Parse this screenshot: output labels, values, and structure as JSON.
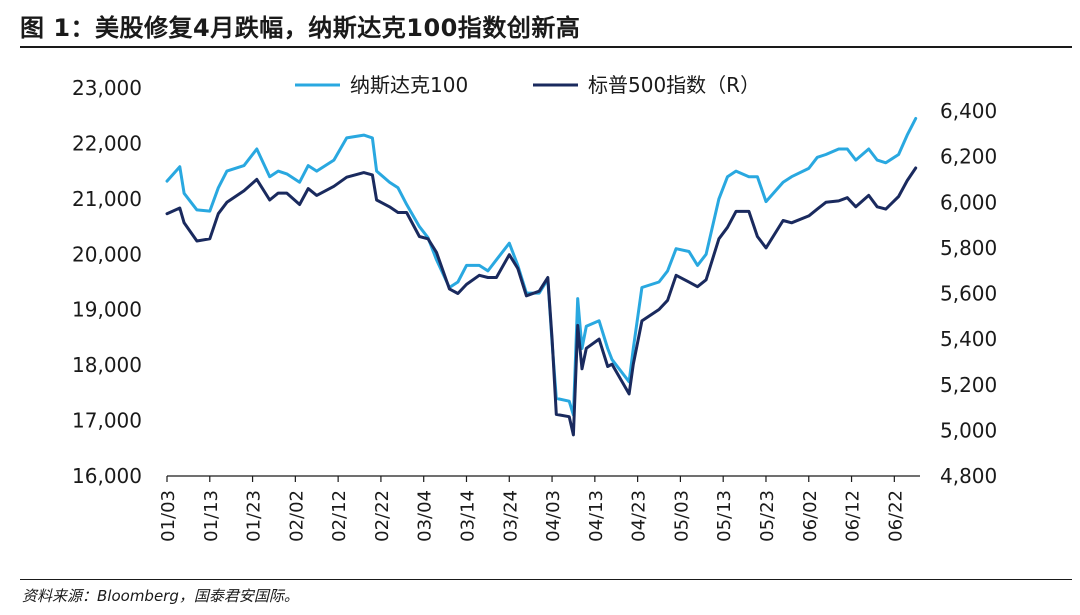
{
  "figure": {
    "title": "图 1：美股修复4月跌幅，纳斯达克100指数创新高",
    "source": "资料来源：Bloomberg，国泰君安国际。"
  },
  "chart_data": {
    "type": "line",
    "x_tick_labels": [
      "01/03",
      "01/13",
      "01/23",
      "02/02",
      "02/12",
      "02/22",
      "03/04",
      "03/14",
      "03/24",
      "04/03",
      "04/13",
      "04/23",
      "05/03",
      "05/13",
      "05/23",
      "06/02",
      "06/12",
      "06/22"
    ],
    "left_axis": {
      "ylim": [
        16000,
        23000
      ],
      "ticks": [
        "16,000",
        "17,000",
        "18,000",
        "19,000",
        "20,000",
        "21,000",
        "22,000",
        "23,000"
      ]
    },
    "right_axis": {
      "ylim": [
        4800,
        6400
      ],
      "ticks": [
        "4,800",
        "5,000",
        "5,200",
        "5,400",
        "5,600",
        "5,800",
        "6,000",
        "6,200",
        "6,400"
      ]
    },
    "legend_position": "top",
    "grid": false,
    "series": [
      {
        "name": "纳斯达克100",
        "axis": "left",
        "color": "#29a8e0",
        "points": [
          [
            "01/03",
            21320
          ],
          [
            "01/06",
            21580
          ],
          [
            "01/07",
            21100
          ],
          [
            "01/10",
            20800
          ],
          [
            "01/13",
            20780
          ],
          [
            "01/15",
            21200
          ],
          [
            "01/17",
            21500
          ],
          [
            "01/21",
            21600
          ],
          [
            "01/24",
            21900
          ],
          [
            "01/27",
            21400
          ],
          [
            "01/29",
            21500
          ],
          [
            "01/31",
            21450
          ],
          [
            "02/03",
            21300
          ],
          [
            "02/05",
            21600
          ],
          [
            "02/07",
            21500
          ],
          [
            "02/11",
            21700
          ],
          [
            "02/14",
            22100
          ],
          [
            "02/18",
            22150
          ],
          [
            "02/20",
            22100
          ],
          [
            "02/21",
            21500
          ],
          [
            "02/24",
            21300
          ],
          [
            "02/26",
            21200
          ],
          [
            "02/28",
            20900
          ],
          [
            "03/03",
            20500
          ],
          [
            "03/05",
            20300
          ],
          [
            "03/07",
            19900
          ],
          [
            "03/10",
            19400
          ],
          [
            "03/12",
            19500
          ],
          [
            "03/14",
            19800
          ],
          [
            "03/17",
            19800
          ],
          [
            "03/19",
            19700
          ],
          [
            "03/21",
            19900
          ],
          [
            "03/24",
            20200
          ],
          [
            "03/26",
            19800
          ],
          [
            "03/28",
            19300
          ],
          [
            "03/31",
            19300
          ],
          [
            "04/02",
            19550
          ],
          [
            "04/03",
            18400
          ],
          [
            "04/04",
            17400
          ],
          [
            "04/07",
            17350
          ],
          [
            "04/08",
            17100
          ],
          [
            "04/09",
            19200
          ],
          [
            "04/10",
            18300
          ],
          [
            "04/11",
            18700
          ],
          [
            "04/14",
            18800
          ],
          [
            "04/16",
            18300
          ],
          [
            "04/17",
            18100
          ],
          [
            "04/21",
            17700
          ],
          [
            "04/22",
            18300
          ],
          [
            "04/24",
            19400
          ],
          [
            "04/28",
            19500
          ],
          [
            "04/30",
            19700
          ],
          [
            "05/02",
            20100
          ],
          [
            "05/05",
            20050
          ],
          [
            "05/07",
            19800
          ],
          [
            "05/09",
            20000
          ],
          [
            "05/12",
            21000
          ],
          [
            "05/14",
            21400
          ],
          [
            "05/16",
            21500
          ],
          [
            "05/19",
            21400
          ],
          [
            "05/21",
            21400
          ],
          [
            "05/23",
            20950
          ],
          [
            "05/27",
            21300
          ],
          [
            "05/29",
            21400
          ],
          [
            "06/02",
            21550
          ],
          [
            "06/04",
            21750
          ],
          [
            "06/06",
            21800
          ],
          [
            "06/09",
            21900
          ],
          [
            "06/11",
            21900
          ],
          [
            "06/13",
            21700
          ],
          [
            "06/16",
            21900
          ],
          [
            "06/18",
            21700
          ],
          [
            "06/20",
            21650
          ],
          [
            "06/23",
            21800
          ],
          [
            "06/25",
            22150
          ],
          [
            "06/27",
            22450
          ]
        ]
      },
      {
        "name": "标普500指数（R）",
        "axis": "right",
        "color": "#1a2a5e",
        "points": [
          [
            "01/03",
            5950
          ],
          [
            "01/06",
            5975
          ],
          [
            "01/07",
            5910
          ],
          [
            "01/10",
            5830
          ],
          [
            "01/13",
            5840
          ],
          [
            "01/15",
            5950
          ],
          [
            "01/17",
            6000
          ],
          [
            "01/21",
            6050
          ],
          [
            "01/24",
            6100
          ],
          [
            "01/27",
            6010
          ],
          [
            "01/29",
            6040
          ],
          [
            "01/31",
            6040
          ],
          [
            "02/03",
            5990
          ],
          [
            "02/05",
            6060
          ],
          [
            "02/07",
            6030
          ],
          [
            "02/11",
            6070
          ],
          [
            "02/14",
            6110
          ],
          [
            "02/18",
            6130
          ],
          [
            "02/20",
            6120
          ],
          [
            "02/21",
            6010
          ],
          [
            "02/24",
            5980
          ],
          [
            "02/26",
            5955
          ],
          [
            "02/28",
            5955
          ],
          [
            "03/03",
            5850
          ],
          [
            "03/05",
            5840
          ],
          [
            "03/07",
            5780
          ],
          [
            "03/10",
            5620
          ],
          [
            "03/12",
            5600
          ],
          [
            "03/14",
            5640
          ],
          [
            "03/17",
            5680
          ],
          [
            "03/19",
            5670
          ],
          [
            "03/21",
            5670
          ],
          [
            "03/24",
            5770
          ],
          [
            "03/26",
            5710
          ],
          [
            "03/28",
            5590
          ],
          [
            "03/31",
            5610
          ],
          [
            "04/02",
            5670
          ],
          [
            "04/03",
            5400
          ],
          [
            "04/04",
            5070
          ],
          [
            "04/07",
            5060
          ],
          [
            "04/08",
            4980
          ],
          [
            "04/09",
            5460
          ],
          [
            "04/10",
            5270
          ],
          [
            "04/11",
            5360
          ],
          [
            "04/14",
            5400
          ],
          [
            "04/16",
            5280
          ],
          [
            "04/17",
            5290
          ],
          [
            "04/21",
            5160
          ],
          [
            "04/22",
            5290
          ],
          [
            "04/24",
            5480
          ],
          [
            "04/28",
            5530
          ],
          [
            "04/30",
            5570
          ],
          [
            "05/02",
            5680
          ],
          [
            "05/05",
            5650
          ],
          [
            "05/07",
            5630
          ],
          [
            "05/09",
            5660
          ],
          [
            "05/12",
            5840
          ],
          [
            "05/14",
            5890
          ],
          [
            "05/16",
            5960
          ],
          [
            "05/19",
            5960
          ],
          [
            "05/21",
            5850
          ],
          [
            "05/23",
            5800
          ],
          [
            "05/27",
            5920
          ],
          [
            "05/29",
            5910
          ],
          [
            "06/02",
            5940
          ],
          [
            "06/04",
            5970
          ],
          [
            "06/06",
            6000
          ],
          [
            "06/09",
            6006
          ],
          [
            "06/11",
            6020
          ],
          [
            "06/13",
            5980
          ],
          [
            "06/16",
            6030
          ],
          [
            "06/18",
            5980
          ],
          [
            "06/20",
            5970
          ],
          [
            "06/23",
            6025
          ],
          [
            "06/25",
            6095
          ],
          [
            "06/27",
            6150
          ]
        ]
      }
    ]
  }
}
